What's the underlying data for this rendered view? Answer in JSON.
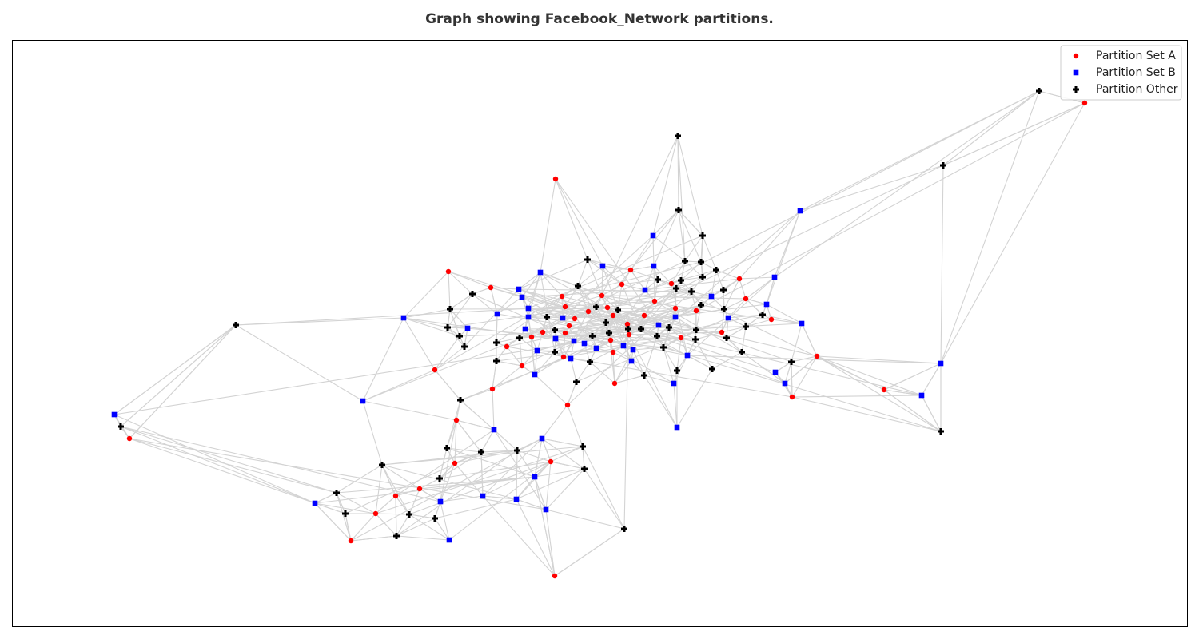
{
  "chart_data": {
    "type": "scatter",
    "title": "Graph showing Facebook_Network partitions.",
    "xlabel": "",
    "ylabel": "",
    "grid": false,
    "legend_position": "top-right",
    "series": [
      {
        "name": "Partition Set A",
        "color": "#ff0000",
        "marker": "circle",
        "points": [
          [
            1357,
            129
          ],
          [
            695,
            224
          ],
          [
            561,
            340
          ],
          [
            614,
            360
          ],
          [
            789,
            338
          ],
          [
            925,
            349
          ],
          [
            703,
            371
          ],
          [
            753,
            370
          ],
          [
            778,
            356
          ],
          [
            840,
            355
          ],
          [
            819,
            377
          ],
          [
            707,
            384
          ],
          [
            736,
            390
          ],
          [
            760,
            385
          ],
          [
            845,
            386
          ],
          [
            933,
            374
          ],
          [
            719,
            399
          ],
          [
            767,
            395
          ],
          [
            806,
            395
          ],
          [
            871,
            389
          ],
          [
            712,
            408
          ],
          [
            785,
            406
          ],
          [
            679,
            416
          ],
          [
            707,
            417
          ],
          [
            665,
            422
          ],
          [
            787,
            419
          ],
          [
            852,
            423
          ],
          [
            903,
            416
          ],
          [
            965,
            400
          ],
          [
            634,
            434
          ],
          [
            764,
            426
          ],
          [
            767,
            441
          ],
          [
            705,
            447
          ],
          [
            653,
            458
          ],
          [
            544,
            463
          ],
          [
            1022,
            446
          ],
          [
            769,
            480
          ],
          [
            616,
            487
          ],
          [
            1106,
            488
          ],
          [
            991,
            497
          ],
          [
            710,
            507
          ],
          [
            571,
            526
          ],
          [
            569,
            580
          ],
          [
            689,
            578
          ],
          [
            525,
            612
          ],
          [
            495,
            621
          ],
          [
            470,
            643
          ],
          [
            439,
            677
          ],
          [
            162,
            549
          ],
          [
            694,
            721
          ]
        ]
      },
      {
        "name": "Partition Set B",
        "color": "#0000ff",
        "marker": "square",
        "points": [
          [
            1001,
            264
          ],
          [
            817,
            295
          ],
          [
            754,
            333
          ],
          [
            818,
            333
          ],
          [
            676,
            341
          ],
          [
            969,
            347
          ],
          [
            649,
            362
          ],
          [
            653,
            372
          ],
          [
            807,
            363
          ],
          [
            890,
            371
          ],
          [
            959,
            381
          ],
          [
            661,
            386
          ],
          [
            505,
            398
          ],
          [
            622,
            393
          ],
          [
            661,
            397
          ],
          [
            704,
            398
          ],
          [
            845,
            397
          ],
          [
            911,
            398
          ],
          [
            1003,
            405
          ],
          [
            585,
            411
          ],
          [
            657,
            412
          ],
          [
            824,
            407
          ],
          [
            695,
            424
          ],
          [
            718,
            427
          ],
          [
            731,
            430
          ],
          [
            746,
            436
          ],
          [
            780,
            433
          ],
          [
            792,
            438
          ],
          [
            672,
            439
          ],
          [
            860,
            445
          ],
          [
            714,
            449
          ],
          [
            790,
            452
          ],
          [
            669,
            469
          ],
          [
            970,
            466
          ],
          [
            843,
            480
          ],
          [
            982,
            480
          ],
          [
            1177,
            455
          ],
          [
            1153,
            495
          ],
          [
            454,
            502
          ],
          [
            143,
            519
          ],
          [
            847,
            535
          ],
          [
            618,
            538
          ],
          [
            678,
            549
          ],
          [
            669,
            597
          ],
          [
            604,
            621
          ],
          [
            646,
            625
          ],
          [
            551,
            628
          ],
          [
            683,
            638
          ],
          [
            394,
            630
          ],
          [
            562,
            676
          ]
        ]
      },
      {
        "name": "Partition Other",
        "color": "#000000",
        "marker": "plus",
        "points": [
          [
            1300,
            114
          ],
          [
            848,
            170
          ],
          [
            1180,
            207
          ],
          [
            849,
            263
          ],
          [
            879,
            295
          ],
          [
            735,
            325
          ],
          [
            857,
            327
          ],
          [
            877,
            328
          ],
          [
            896,
            338
          ],
          [
            823,
            350
          ],
          [
            852,
            351
          ],
          [
            879,
            347
          ],
          [
            723,
            358
          ],
          [
            846,
            361
          ],
          [
            865,
            365
          ],
          [
            905,
            363
          ],
          [
            591,
            368
          ],
          [
            563,
            387
          ],
          [
            746,
            384
          ],
          [
            773,
            388
          ],
          [
            877,
            382
          ],
          [
            906,
            387
          ],
          [
            954,
            394
          ],
          [
            684,
            397
          ],
          [
            758,
            404
          ],
          [
            560,
            410
          ],
          [
            694,
            413
          ],
          [
            786,
            412
          ],
          [
            802,
            412
          ],
          [
            837,
            410
          ],
          [
            871,
            413
          ],
          [
            933,
            409
          ],
          [
            575,
            421
          ],
          [
            650,
            423
          ],
          [
            741,
            421
          ],
          [
            762,
            417
          ],
          [
            822,
            421
          ],
          [
            870,
            425
          ],
          [
            909,
            423
          ],
          [
            581,
            434
          ],
          [
            621,
            429
          ],
          [
            694,
            441
          ],
          [
            830,
            435
          ],
          [
            928,
            441
          ],
          [
            621,
            452
          ],
          [
            738,
            453
          ],
          [
            990,
            453
          ],
          [
            806,
            470
          ],
          [
            847,
            464
          ],
          [
            891,
            462
          ],
          [
            721,
            478
          ],
          [
            576,
            501
          ],
          [
            1177,
            540
          ],
          [
            295,
            407
          ],
          [
            151,
            534
          ],
          [
            559,
            561
          ],
          [
            602,
            566
          ],
          [
            647,
            564
          ],
          [
            729,
            559
          ],
          [
            478,
            582
          ],
          [
            731,
            587
          ],
          [
            550,
            599
          ],
          [
            421,
            617
          ],
          [
            432,
            643
          ],
          [
            512,
            644
          ],
          [
            544,
            649
          ],
          [
            496,
            671
          ],
          [
            781,
            662
          ]
        ]
      }
    ],
    "legend": [
      "Partition Set A",
      "Partition Set B",
      "Partition Other"
    ]
  }
}
